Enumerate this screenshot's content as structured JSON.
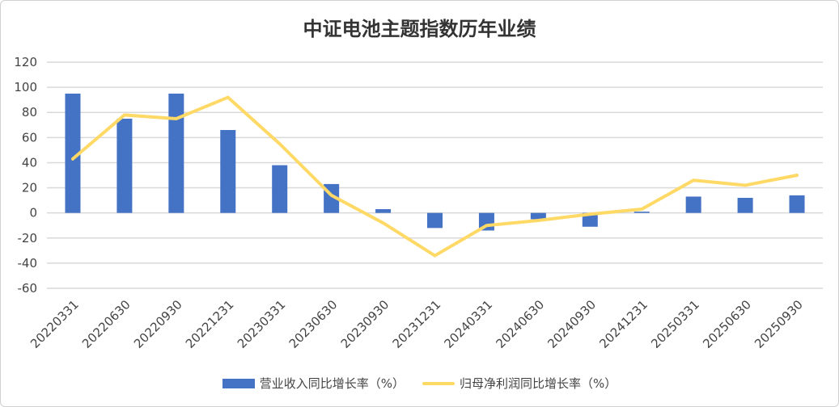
{
  "chart_data": {
    "type": "bar+line",
    "title": "中证电池主题指数历年业绩",
    "categories": [
      "20220331",
      "20220630",
      "20220930",
      "20221231",
      "20230331",
      "20230630",
      "20230930",
      "20231231",
      "20240331",
      "20240630",
      "20240930",
      "20241231",
      "20250331",
      "20250630",
      "20250930"
    ],
    "series": [
      {
        "name": "营业收入同比增长率（%）",
        "type": "bar",
        "color": "#4472C4",
        "values": [
          95,
          75,
          95,
          66,
          38,
          23,
          3,
          -12,
          -14,
          -5,
          -11,
          1,
          13,
          12,
          14
        ]
      },
      {
        "name": "归母净利润同比增长率（%）",
        "type": "line",
        "color": "#FFD966",
        "values": [
          43,
          78,
          75,
          92,
          55,
          14,
          -8,
          -34,
          -10,
          -6,
          -1,
          3,
          26,
          22,
          30
        ]
      }
    ],
    "ylim": [
      -60,
      120
    ],
    "yticks": [
      -60,
      -40,
      -20,
      0,
      20,
      40,
      60,
      80,
      100,
      120
    ],
    "grid": true,
    "legend_position": "bottom"
  }
}
